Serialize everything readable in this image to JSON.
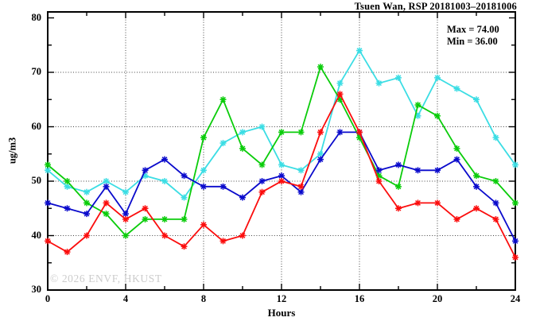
{
  "header": {
    "title": "Tsuen Wan, RSP 20181003–20181006"
  },
  "annotations": {
    "max_label": "Max = 74.00",
    "min_label": "Min = 36.00"
  },
  "watermark_text": "© 2026 ENVF, HKUST",
  "chart_data": {
    "type": "line",
    "title": "Tsuen Wan, RSP 20181003–20181006",
    "xlabel": "Hours",
    "ylabel": "ug/m3",
    "xlim": [
      0,
      24
    ],
    "ylim": [
      30,
      80
    ],
    "grid": "dotted",
    "legend_position": "none",
    "stat_max": 74.0,
    "stat_min": 36.0,
    "x_major_ticks": [
      0,
      4,
      8,
      12,
      16,
      20,
      24
    ],
    "x_minor_ticks": [
      2,
      6,
      10,
      14,
      18,
      22
    ],
    "y_major_ticks": [
      30,
      40,
      50,
      60,
      70,
      80
    ],
    "y_minor_ticks": [
      35,
      45,
      55,
      65,
      75
    ],
    "grid_x": [
      4,
      8,
      12,
      16,
      20
    ],
    "grid_y": [
      40,
      50,
      60,
      70
    ],
    "x": [
      0,
      1,
      2,
      3,
      4,
      5,
      6,
      7,
      8,
      9,
      10,
      11,
      12,
      13,
      14,
      15,
      16,
      17,
      18,
      19,
      20,
      21,
      22,
      23,
      24
    ],
    "series": [
      {
        "name": "cyan-series",
        "color": "#3bdde4",
        "values": [
          52,
          49,
          48,
          50,
          48,
          51,
          50,
          47,
          52,
          57,
          59,
          60,
          53,
          52,
          55,
          68,
          74,
          68,
          69,
          62,
          69,
          67,
          65,
          58,
          53
        ]
      },
      {
        "name": "green-series",
        "color": "#0acc0a",
        "values": [
          53,
          50,
          46,
          44,
          40,
          43,
          43,
          43,
          58,
          65,
          56,
          53,
          59,
          59,
          71,
          65,
          58,
          51,
          49,
          64,
          62,
          56,
          51,
          50,
          46
        ]
      },
      {
        "name": "blue-series",
        "color": "#0a0acc",
        "values": [
          46,
          45,
          44,
          49,
          44,
          52,
          54,
          51,
          49,
          49,
          47,
          50,
          51,
          48,
          54,
          59,
          59,
          52,
          53,
          52,
          52,
          54,
          49,
          46,
          39
        ]
      },
      {
        "name": "red-series",
        "color": "#fb0d0d",
        "values": [
          39,
          37,
          40,
          46,
          43,
          45,
          40,
          38,
          42,
          39,
          40,
          48,
          50,
          49,
          59,
          66,
          59,
          50,
          45,
          46,
          46,
          43,
          45,
          43,
          36
        ]
      }
    ]
  }
}
